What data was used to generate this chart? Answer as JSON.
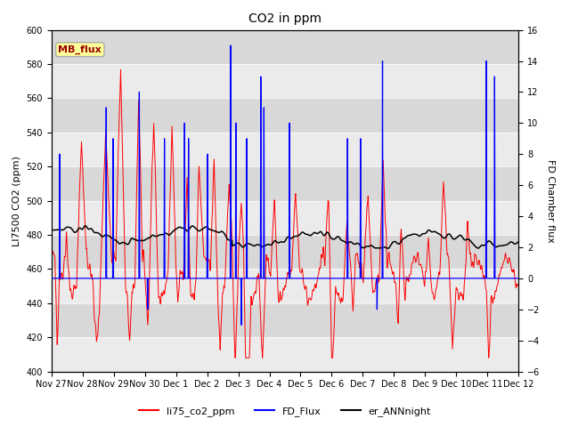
{
  "title": "CO2 in ppm",
  "ylabel_left": "LI7500 CO2 (ppm)",
  "ylabel_right": "FD Chamber flux",
  "ylim_left": [
    400,
    600
  ],
  "ylim_right": [
    -6,
    16
  ],
  "yticks_left": [
    400,
    420,
    440,
    460,
    480,
    500,
    520,
    540,
    560,
    580,
    600
  ],
  "yticks_right": [
    -6,
    -4,
    -2,
    0,
    2,
    4,
    6,
    8,
    10,
    12,
    14,
    16
  ],
  "xtick_labels": [
    "Nov 27",
    "Nov 28",
    "Nov 29",
    "Nov 30",
    "Dec 1",
    "Dec 2",
    "Dec 3",
    "Dec 4",
    "Dec 5",
    "Dec 6",
    "Dec 7",
    "Dec 8",
    "Dec 9",
    "Dec 10",
    "Dec 11",
    "Dec 12"
  ],
  "n_days": 15.5,
  "colors": {
    "red": "#ff0000",
    "blue": "#0000ff",
    "black": "#000000",
    "bg_light": "#ebebeb",
    "bg_dark": "#d8d8d8",
    "bg_white": "#ffffff"
  },
  "legend_labels": [
    "li75_co2_ppm",
    "FD_Flux",
    "er_ANNnight"
  ],
  "mb_flux_box_color": "#ffff99",
  "mb_flux_text_color": "#990000",
  "mb_flux_border_color": "#aaaaaa"
}
